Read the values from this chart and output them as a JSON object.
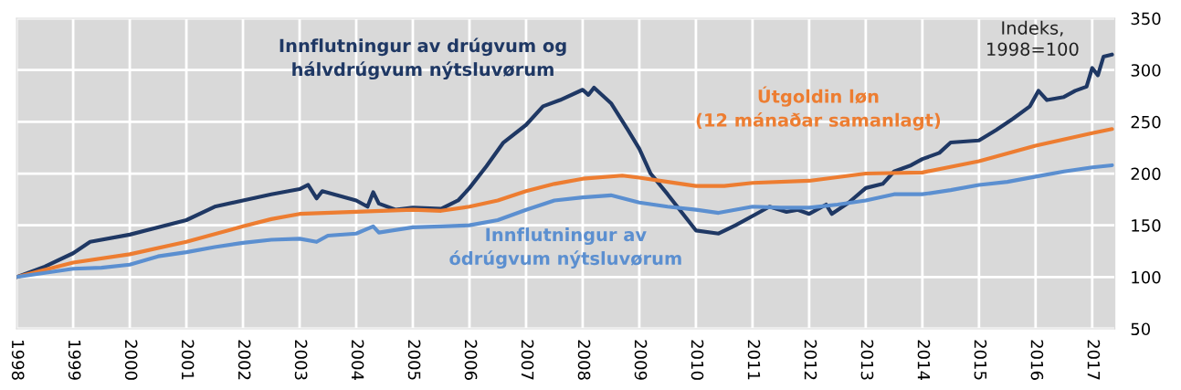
{
  "chart_data": {
    "type": "line",
    "ylabel": "Indeks,\n1998=100",
    "xlim": [
      1998,
      2017.4
    ],
    "ylim": [
      50,
      350
    ],
    "xticks": [
      1998,
      1999,
      2000,
      2001,
      2002,
      2003,
      2004,
      2005,
      2006,
      2007,
      2008,
      2009,
      2010,
      2011,
      2012,
      2013,
      2014,
      2015,
      2016,
      2017
    ],
    "yticks": [
      50,
      100,
      150,
      200,
      250,
      300,
      350
    ],
    "grid": true,
    "legend": false,
    "series": [
      {
        "name": "Innflutningur av drúgvum og\nhálvdrúgvum nýtsluvørum",
        "color": "#1f3864",
        "x": [
          1998,
          1998.5,
          1999,
          1999.3,
          2000,
          2001,
          2001.5,
          2002,
          2002.5,
          2003,
          2003.15,
          2003.3,
          2003.4,
          2004,
          2004.2,
          2004.3,
          2004.4,
          2004.7,
          2005,
          2005.5,
          2005.8,
          2006,
          2006.3,
          2006.6,
          2007,
          2007.3,
          2007.6,
          2008,
          2008.1,
          2008.2,
          2008.5,
          2008.8,
          2009,
          2009.2,
          2009.5,
          2009.8,
          2010,
          2010.4,
          2010.7,
          2011,
          2011.3,
          2011.6,
          2011.8,
          2012,
          2012.3,
          2012.4,
          2012.7,
          2013,
          2013.3,
          2013.5,
          2013.8,
          2014,
          2014.3,
          2014.5,
          2015,
          2015.3,
          2015.6,
          2015.9,
          2016.05,
          2016.2,
          2016.5,
          2016.7,
          2016.9,
          2017,
          2017.1,
          2017.2,
          2017.35
        ],
        "values": [
          100,
          110,
          123,
          134,
          141,
          155,
          168,
          174,
          180,
          185,
          189,
          176,
          183,
          174,
          168,
          182,
          171,
          165,
          167,
          166,
          174,
          186,
          207,
          230,
          247,
          265,
          271,
          281,
          276,
          283,
          268,
          242,
          224,
          200,
          180,
          159,
          145,
          142,
          150,
          159,
          168,
          163,
          165,
          161,
          170,
          161,
          172,
          186,
          190,
          202,
          208,
          214,
          220,
          230,
          232,
          242,
          253,
          265,
          280,
          271,
          274,
          280,
          284,
          302,
          295,
          313,
          315
        ]
      },
      {
        "name": "Útgoldin løn\n(12 mánaðar samanlagt)",
        "color": "#ed7d31",
        "x": [
          1998,
          1999,
          2000,
          2001,
          2002,
          2002.5,
          2003,
          2004,
          2005,
          2005.5,
          2006,
          2006.5,
          2007,
          2007.5,
          2008,
          2008.7,
          2009,
          2009.5,
          2010,
          2010.5,
          2011,
          2012,
          2013,
          2014,
          2015,
          2016,
          2017,
          2017.35
        ],
        "values": [
          100,
          114,
          122,
          134,
          149,
          156,
          161,
          163,
          165,
          164,
          168,
          174,
          183,
          190,
          195,
          198,
          196,
          192,
          188,
          188,
          191,
          193,
          200,
          201,
          212,
          227,
          239,
          243
        ]
      },
      {
        "name": "Innflutningur av\nódrúgvum nýtsluvørum",
        "color": "#5b8fd0",
        "x": [
          1998,
          1999,
          1999.5,
          2000,
          2000.5,
          2001,
          2001.5,
          2002,
          2002.5,
          2003,
          2003.3,
          2003.5,
          2004,
          2004.3,
          2004.4,
          2005,
          2005.5,
          2006,
          2006.5,
          2007,
          2007.5,
          2008,
          2008.5,
          2009,
          2009.5,
          2010,
          2010.4,
          2011,
          2011.5,
          2012,
          2012.5,
          2013,
          2013.5,
          2014,
          2014.5,
          2015,
          2015.5,
          2016,
          2016.5,
          2017,
          2017.35
        ],
        "values": [
          100,
          108,
          109,
          112,
          120,
          124,
          129,
          133,
          136,
          137,
          134,
          140,
          142,
          149,
          143,
          148,
          149,
          150,
          155,
          165,
          174,
          177,
          179,
          172,
          168,
          165,
          162,
          168,
          167,
          167,
          170,
          174,
          180,
          180,
          184,
          189,
          192,
          197,
          202,
          206,
          208
        ]
      }
    ]
  }
}
